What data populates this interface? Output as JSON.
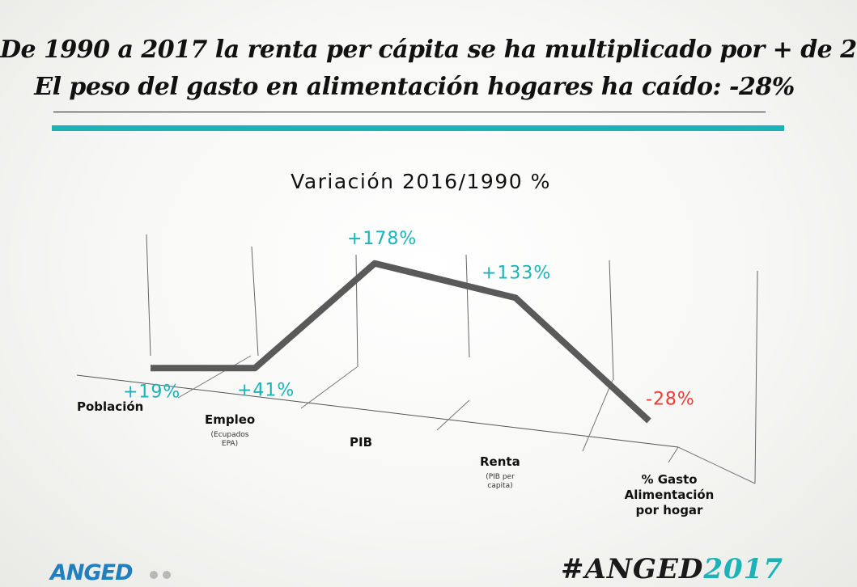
{
  "header": {
    "line1": "De 1990 a 2017 la renta per cápita se ha multiplicado por + de 2",
    "line2": "El peso del gasto en alimentación hogares ha caído: -28%"
  },
  "colors": {
    "accent": "#1bb3b7",
    "negative": "#ee3b33",
    "line": "#5a5a5a",
    "brand_blue": "#1f7fbf",
    "dot_gray": "#b8b8b8"
  },
  "chart_data": {
    "type": "line",
    "title": "Variación 2016/1990 %",
    "categories": [
      "Población",
      "Empleo",
      "PIB",
      "Renta",
      "% Gasto Alimentación por hogar"
    ],
    "category_lines": [
      [
        "Población"
      ],
      [
        "Empleo"
      ],
      [
        "PIB"
      ],
      [
        "Renta"
      ],
      [
        "% Gasto",
        "Alimentación",
        "por hogar"
      ]
    ],
    "category_notes": [
      [],
      [
        "(Ecupados",
        "EPA)"
      ],
      [],
      [
        "(PIB per",
        "capita)"
      ],
      []
    ],
    "values": [
      19,
      41,
      178,
      133,
      -28
    ],
    "value_labels": [
      "+19%",
      "+41%",
      "+178%",
      "+133%",
      "-28%"
    ],
    "ylim": [
      -40,
      200
    ],
    "grid": false,
    "legend": "none"
  },
  "footer": {
    "brand": "ANGED",
    "hashtag_prefix": "#ANGED",
    "hashtag_year": "2017"
  }
}
